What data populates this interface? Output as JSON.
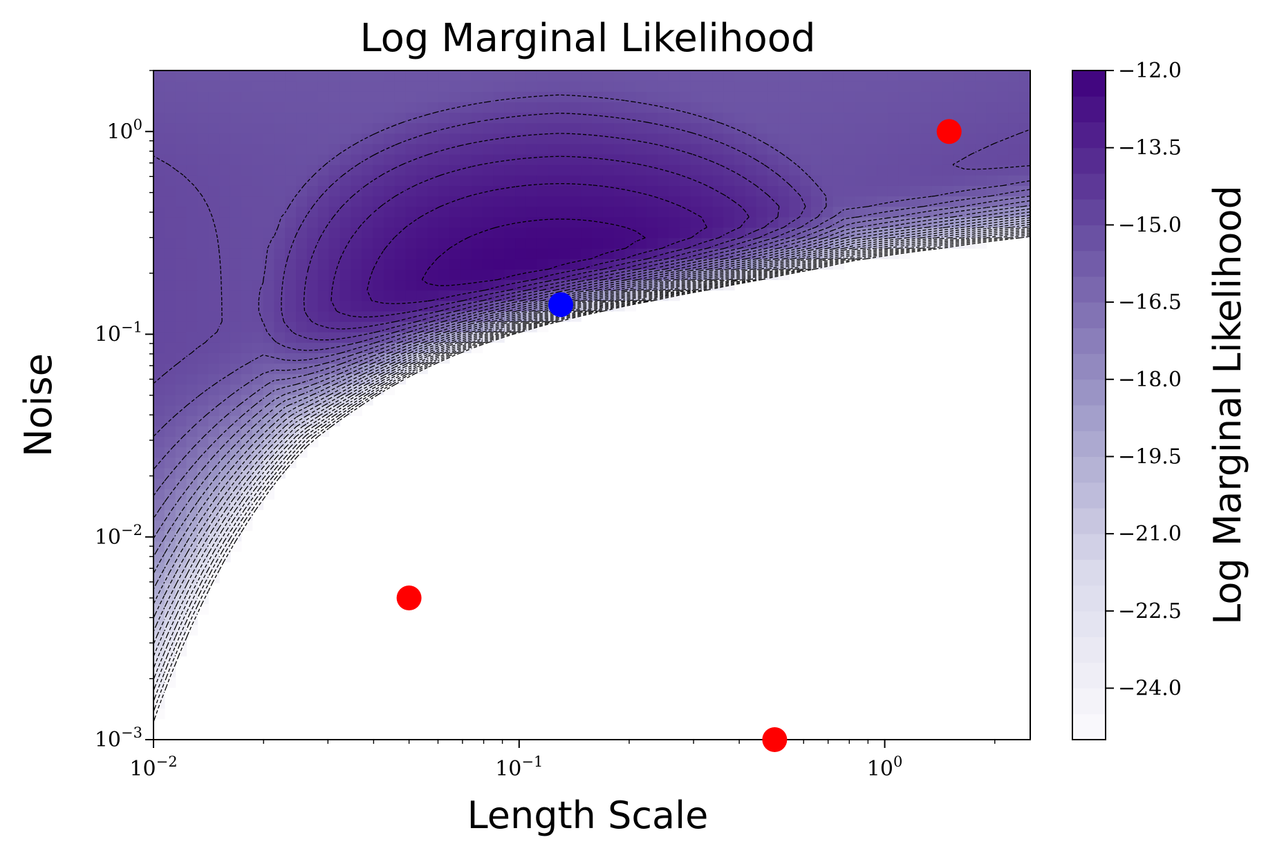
{
  "chart_data": {
    "type": "contour",
    "title": "Log Marginal Likelihood",
    "xlabel": "Length Scale",
    "ylabel": "Noise",
    "xscale": "log",
    "yscale": "log",
    "xlim": [
      0.01,
      2.5
    ],
    "ylim": [
      0.001,
      2.0
    ],
    "x_ticks": [
      {
        "base": "10",
        "exp": "−2",
        "value": 0.01
      },
      {
        "base": "10",
        "exp": "−1",
        "value": 0.1
      },
      {
        "base": "10",
        "exp": "0",
        "value": 1
      }
    ],
    "y_ticks": [
      {
        "base": "10",
        "exp": "−3",
        "value": 0.001
      },
      {
        "base": "10",
        "exp": "−2",
        "value": 0.01
      },
      {
        "base": "10",
        "exp": "−1",
        "value": 0.1
      },
      {
        "base": "10",
        "exp": "0",
        "value": 1
      }
    ],
    "colorbar": {
      "label": "Log Marginal Likelihood",
      "range": [
        -25.0,
        -12.0
      ],
      "ticks": [
        "−12.0",
        "−13.5",
        "−15.0",
        "−16.5",
        "−18.0",
        "−19.5",
        "−21.0",
        "−22.5",
        "−24.0"
      ],
      "tick_values": [
        -12.0,
        -13.5,
        -15.0,
        -16.5,
        -18.0,
        -19.5,
        -21.0,
        -22.5,
        -24.0
      ],
      "colormap": "Purples",
      "color_max": "#3f007d",
      "color_min": "#fcfbfd"
    },
    "maximum": {
      "length_scale": 0.13,
      "noise": 0.14,
      "value": -12.0
    },
    "points": [
      {
        "length_scale": 0.13,
        "noise": 0.14,
        "color": "#0000ff"
      },
      {
        "length_scale": 0.05,
        "noise": 0.005,
        "color": "#ff0000"
      },
      {
        "length_scale": 1.5,
        "noise": 1.0,
        "color": "#ff0000"
      },
      {
        "length_scale": 0.5,
        "noise": 0.001,
        "color": "#ff0000"
      }
    ],
    "contour_style": "dashed black lines",
    "masked_region": "lower-right, values below colorbar minimum left blank"
  }
}
